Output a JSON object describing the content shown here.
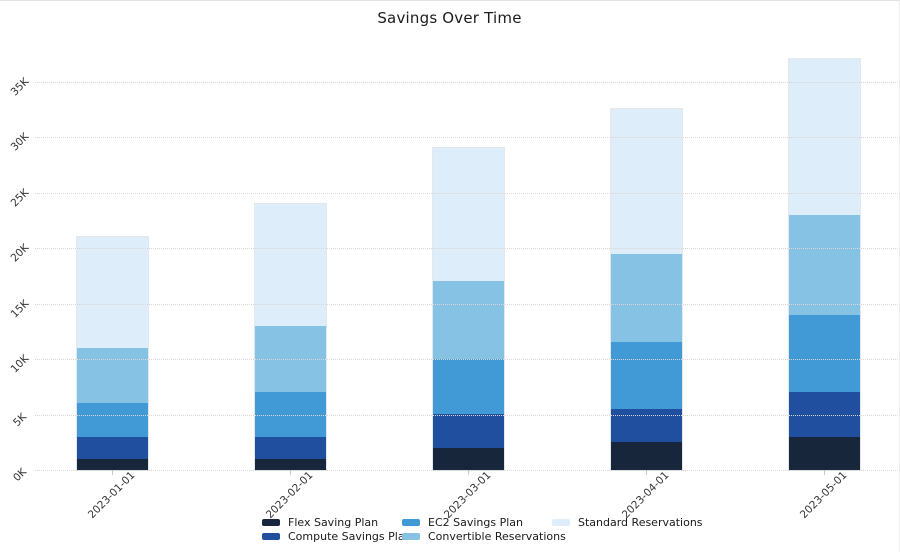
{
  "title": "Savings Over Time",
  "chart_data": {
    "type": "bar",
    "stacked": true,
    "title": "Savings Over Time",
    "xlabel": "",
    "ylabel": "",
    "categories": [
      "2023-01-01",
      "2023-02-01",
      "2023-03-01",
      "2023-04-01",
      "2023-05-01"
    ],
    "series": [
      {
        "name": "Flex Saving Plan",
        "color": "#17263a",
        "values": [
          1000,
          1000,
          2000,
          2500,
          3000
        ]
      },
      {
        "name": "Compute Savings Plan",
        "color": "#1f4f9e",
        "values": [
          2000,
          2000,
          3000,
          3000,
          4000
        ]
      },
      {
        "name": "EC2 Savings Plan",
        "color": "#4199d6",
        "values": [
          3000,
          4000,
          5000,
          6000,
          7000
        ]
      },
      {
        "name": "Convertible Reservations",
        "color": "#86c2e3",
        "values": [
          5000,
          6000,
          7000,
          8000,
          9000
        ]
      },
      {
        "name": "Standard Reservations",
        "color": "#ddeefa",
        "values": [
          10000,
          11000,
          12000,
          13000,
          14000
        ]
      }
    ],
    "totals": [
      21000,
      24000,
      29000,
      32500,
      37000
    ],
    "ylim": [
      0,
      38000
    ],
    "yticks": [
      0,
      5000,
      10000,
      15000,
      20000,
      25000,
      30000,
      35000
    ],
    "ytick_labels": [
      "0K",
      "5K",
      "10K",
      "15K",
      "20K",
      "25K",
      "30K",
      "35K"
    ],
    "grid": "horizontal-dotted",
    "tick_label_rotation_deg": 45,
    "legend_position": "bottom-center",
    "legend_columns": [
      [
        "Flex Saving Plan",
        "Compute Savings Plan"
      ],
      [
        "EC2 Savings Plan",
        "Convertible Reservations"
      ],
      [
        "Standard Reservations"
      ]
    ]
  }
}
